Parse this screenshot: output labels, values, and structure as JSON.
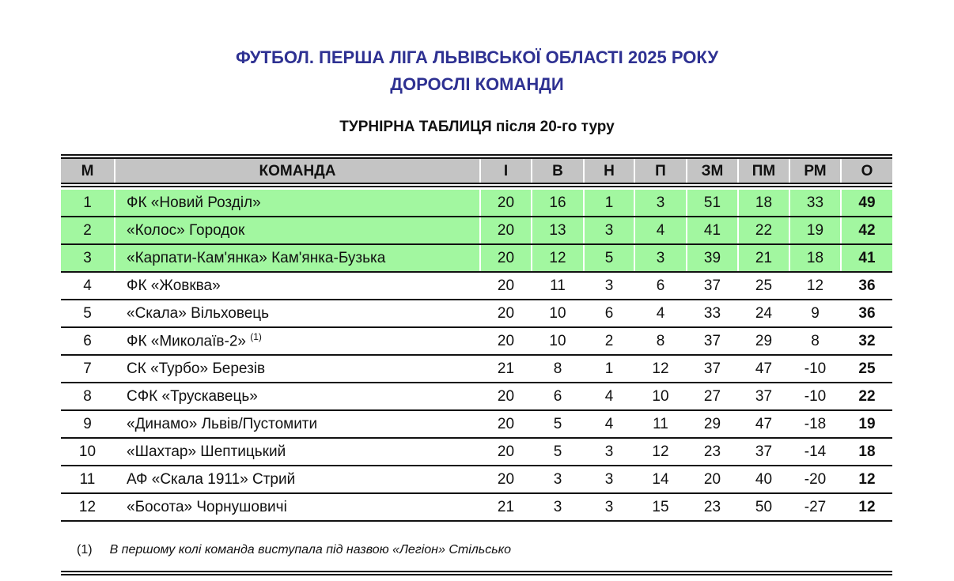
{
  "title_line1": "ФУТБОЛ. ПЕРША ЛІГА ЛЬВІВСЬКОЇ ОБЛАСТІ 2025 РОКУ",
  "title_line2": "ДОРОСЛІ КОМАНДИ",
  "subtitle": "ТУРНІРНА ТАБЛИЦЯ після 20-го туру",
  "colors": {
    "title": "#2e3192",
    "highlight": "#a2f7a0",
    "header": "#c4c4c4"
  },
  "columns": [
    "М",
    "КОМАНДА",
    "І",
    "В",
    "Н",
    "П",
    "ЗМ",
    "ПМ",
    "РМ",
    "О"
  ],
  "rows": [
    {
      "pos": "1",
      "team": "ФК «Новий Розділ»",
      "note": "",
      "p": "20",
      "w": "16",
      "d": "1",
      "l": "3",
      "gf": "51",
      "ga": "18",
      "gd": "33",
      "pts": "49",
      "highlight": true
    },
    {
      "pos": "2",
      "team": "«Колос» Городок",
      "note": "",
      "p": "20",
      "w": "13",
      "d": "3",
      "l": "4",
      "gf": "41",
      "ga": "22",
      "gd": "19",
      "pts": "42",
      "highlight": true
    },
    {
      "pos": "3",
      "team": "«Карпати-Кам'янка» Кам'янка-Бузька",
      "note": "",
      "p": "20",
      "w": "12",
      "d": "5",
      "l": "3",
      "gf": "39",
      "ga": "21",
      "gd": "18",
      "pts": "41",
      "highlight": true
    },
    {
      "pos": "4",
      "team": "ФК «Жовква»",
      "note": "",
      "p": "20",
      "w": "11",
      "d": "3",
      "l": "6",
      "gf": "37",
      "ga": "25",
      "gd": "12",
      "pts": "36",
      "highlight": false
    },
    {
      "pos": "5",
      "team": "«Скала» Вільховець",
      "note": "",
      "p": "20",
      "w": "10",
      "d": "6",
      "l": "4",
      "gf": "33",
      "ga": "24",
      "gd": "9",
      "pts": "36",
      "highlight": false
    },
    {
      "pos": "6",
      "team": "ФК «Миколаїв-2»",
      "note": "(1)",
      "p": "20",
      "w": "10",
      "d": "2",
      "l": "8",
      "gf": "37",
      "ga": "29",
      "gd": "8",
      "pts": "32",
      "highlight": false
    },
    {
      "pos": "7",
      "team": "СК «Турбо» Березів",
      "note": "",
      "p": "21",
      "w": "8",
      "d": "1",
      "l": "12",
      "gf": "37",
      "ga": "47",
      "gd": "-10",
      "pts": "25",
      "highlight": false
    },
    {
      "pos": "8",
      "team": "СФК «Трускавець»",
      "note": "",
      "p": "20",
      "w": "6",
      "d": "4",
      "l": "10",
      "gf": "27",
      "ga": "37",
      "gd": "-10",
      "pts": "22",
      "highlight": false
    },
    {
      "pos": "9",
      "team": "«Динамо» Львів/Пустомити",
      "note": "",
      "p": "20",
      "w": "5",
      "d": "4",
      "l": "11",
      "gf": "29",
      "ga": "47",
      "gd": "-18",
      "pts": "19",
      "highlight": false
    },
    {
      "pos": "10",
      "team": "«Шахтар» Шептицький",
      "note": "",
      "p": "20",
      "w": "5",
      "d": "3",
      "l": "12",
      "gf": "23",
      "ga": "37",
      "gd": "-14",
      "pts": "18",
      "highlight": false
    },
    {
      "pos": "11",
      "team": "АФ «Скала 1911» Стрий",
      "note": "",
      "p": "20",
      "w": "3",
      "d": "3",
      "l": "14",
      "gf": "20",
      "ga": "40",
      "gd": "-20",
      "pts": "12",
      "highlight": false
    },
    {
      "pos": "12",
      "team": "«Босота» Чорнушовичі",
      "note": "",
      "p": "21",
      "w": "3",
      "d": "3",
      "l": "15",
      "gf": "23",
      "ga": "50",
      "gd": "-27",
      "pts": "12",
      "highlight": false
    }
  ],
  "footnote": {
    "mark": "(1)",
    "text": "В першому колі команда виступала під назвою «Легіон» Стільсько"
  }
}
